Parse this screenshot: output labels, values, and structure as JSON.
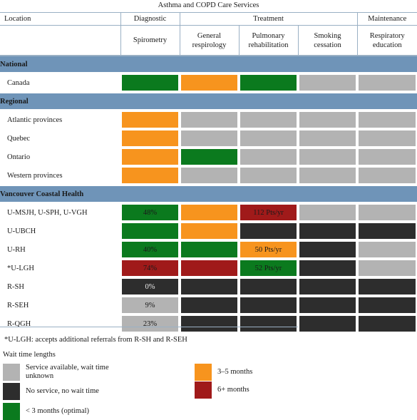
{
  "title": "Asthma and COPD Care Services",
  "header": {
    "location": "Location",
    "diagnostic": "Diagnostic",
    "treatment": "Treatment",
    "maintenance": "Maintenance",
    "spirometry": "Spirometry",
    "general_respirology": "General respirology",
    "pulmonary_rehabilitation": "Pulmonary rehabilitation",
    "smoking_cessation": "Smoking cessation",
    "respiratory_education": "Respiratory education"
  },
  "sections": {
    "national": "National",
    "regional": "Regional",
    "vch": "Vancouver Coastal Health"
  },
  "rows": [
    {
      "name": "Canada",
      "cells": [
        {
          "c": "green",
          "t": ""
        },
        {
          "c": "orange",
          "t": ""
        },
        {
          "c": "green",
          "t": ""
        },
        {
          "c": "gray",
          "t": ""
        },
        {
          "c": "gray",
          "t": ""
        }
      ]
    },
    {
      "name": "Atlantic provinces",
      "cells": [
        {
          "c": "orange",
          "t": ""
        },
        {
          "c": "gray",
          "t": ""
        },
        {
          "c": "gray",
          "t": ""
        },
        {
          "c": "gray",
          "t": ""
        },
        {
          "c": "gray",
          "t": ""
        }
      ]
    },
    {
      "name": "Quebec",
      "cells": [
        {
          "c": "orange",
          "t": ""
        },
        {
          "c": "gray",
          "t": ""
        },
        {
          "c": "gray",
          "t": ""
        },
        {
          "c": "gray",
          "t": ""
        },
        {
          "c": "gray",
          "t": ""
        }
      ]
    },
    {
      "name": "Ontario",
      "cells": [
        {
          "c": "orange",
          "t": ""
        },
        {
          "c": "green",
          "t": ""
        },
        {
          "c": "gray",
          "t": ""
        },
        {
          "c": "gray",
          "t": ""
        },
        {
          "c": "gray",
          "t": ""
        }
      ]
    },
    {
      "name": "Western provinces",
      "cells": [
        {
          "c": "orange",
          "t": ""
        },
        {
          "c": "gray",
          "t": ""
        },
        {
          "c": "gray",
          "t": ""
        },
        {
          "c": "gray",
          "t": ""
        },
        {
          "c": "gray",
          "t": ""
        }
      ]
    },
    {
      "name": "U-MSJH, U-SPH, U-VGH",
      "cells": [
        {
          "c": "green",
          "t": "48%"
        },
        {
          "c": "orange",
          "t": ""
        },
        {
          "c": "red",
          "t": "112 Pts/yr"
        },
        {
          "c": "gray",
          "t": ""
        },
        {
          "c": "gray",
          "t": ""
        }
      ]
    },
    {
      "name": "U-UBCH",
      "cells": [
        {
          "c": "green",
          "t": ""
        },
        {
          "c": "orange",
          "t": ""
        },
        {
          "c": "dark",
          "t": ""
        },
        {
          "c": "dark",
          "t": ""
        },
        {
          "c": "dark",
          "t": ""
        }
      ]
    },
    {
      "name": "U-RH",
      "cells": [
        {
          "c": "green",
          "t": "40%"
        },
        {
          "c": "green",
          "t": ""
        },
        {
          "c": "orange",
          "t": "50 Pts/yr"
        },
        {
          "c": "dark",
          "t": ""
        },
        {
          "c": "gray",
          "t": ""
        }
      ]
    },
    {
      "name": "*U-LGH",
      "cells": [
        {
          "c": "red",
          "t": "74%"
        },
        {
          "c": "red",
          "t": ""
        },
        {
          "c": "green",
          "t": "52 Pts/yr"
        },
        {
          "c": "dark",
          "t": ""
        },
        {
          "c": "gray",
          "t": ""
        }
      ]
    },
    {
      "name": "R-SH",
      "cells": [
        {
          "c": "dark",
          "t": "0%"
        },
        {
          "c": "dark",
          "t": ""
        },
        {
          "c": "dark",
          "t": ""
        },
        {
          "c": "dark",
          "t": ""
        },
        {
          "c": "dark",
          "t": ""
        }
      ]
    },
    {
      "name": "R-SEH",
      "cells": [
        {
          "c": "gray",
          "t": "9%"
        },
        {
          "c": "dark",
          "t": ""
        },
        {
          "c": "dark",
          "t": ""
        },
        {
          "c": "dark",
          "t": ""
        },
        {
          "c": "dark",
          "t": ""
        }
      ]
    },
    {
      "name": "R-QGH",
      "cells": [
        {
          "c": "gray",
          "t": "23%"
        },
        {
          "c": "dark",
          "t": ""
        },
        {
          "c": "dark",
          "t": ""
        },
        {
          "c": "dark",
          "t": ""
        },
        {
          "c": "dark",
          "t": ""
        }
      ]
    }
  ],
  "footnote": "*U-LGH: accepts additional referrals from R-SH and R-SEH",
  "legend": {
    "title": "Wait time lengths",
    "gray": "Service available, wait time unknown",
    "dark": "No service, no wait time",
    "green": "< 3 months (optimal)",
    "orange": "3–5 months",
    "red": "6+ months"
  },
  "colors": {
    "green": "#0b7a1e",
    "orange": "#f7941e",
    "red": "#a01a1a",
    "gray": "#b3b3b3",
    "dark": "#2d2d2d",
    "section": "#6f94b8"
  }
}
